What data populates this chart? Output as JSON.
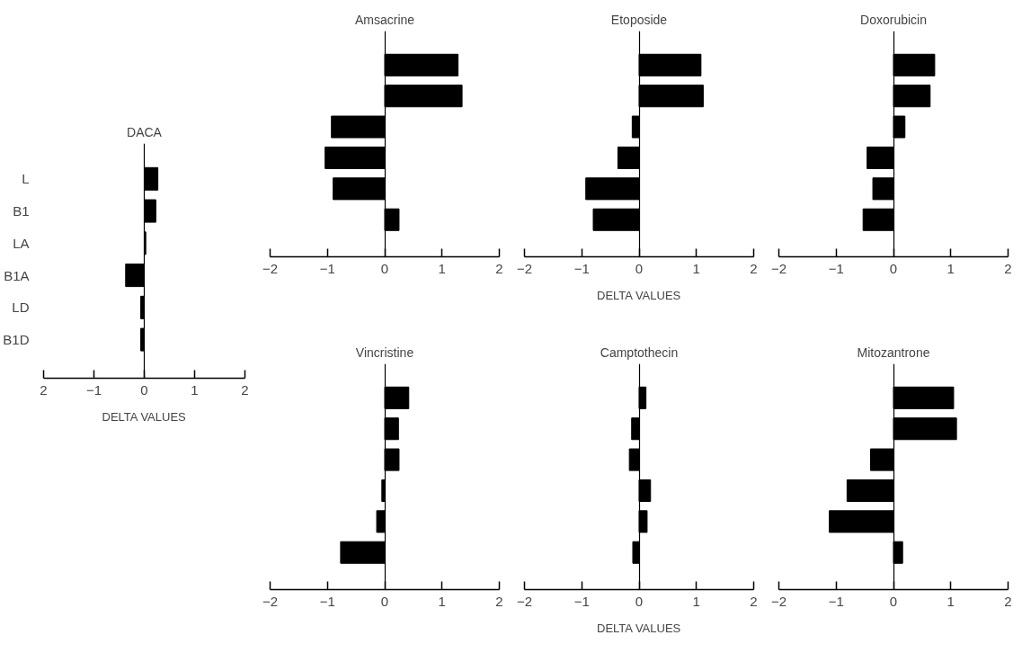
{
  "chart_data": [
    {
      "type": "bar",
      "orientation": "horizontal",
      "title": "Amsacrine",
      "categories": [
        null,
        null,
        null,
        null,
        null,
        null
      ],
      "values": [
        1.28,
        1.35,
        -0.93,
        -1.04,
        -0.9,
        0.25
      ],
      "color": "#000000",
      "xlim": [
        -2,
        2
      ],
      "xticks": [
        -2,
        -1,
        0,
        1,
        2
      ],
      "tick_labels": "x"
    },
    {
      "type": "bar",
      "orientation": "horizontal",
      "title": "Etoposide",
      "categories": [
        null,
        null,
        null,
        null,
        null,
        null
      ],
      "values": [
        1.08,
        1.12,
        -0.12,
        -0.37,
        -0.93,
        -0.8
      ],
      "color": "#000000",
      "xlim": [
        -2,
        2
      ],
      "xticks": [
        -2,
        -1,
        0,
        1,
        2
      ],
      "xlabel": "DELTA VALUES",
      "tick_labels": "x"
    },
    {
      "type": "bar",
      "orientation": "horizontal",
      "title": "Doxorubicin",
      "categories": [
        null,
        null,
        null,
        null,
        null,
        null
      ],
      "values": [
        0.72,
        0.64,
        0.2,
        -0.46,
        -0.36,
        -0.53
      ],
      "color": "#000000",
      "xlim": [
        -2,
        2
      ],
      "xticks": [
        -2,
        -1,
        0,
        1,
        2
      ],
      "tick_labels": "x"
    },
    {
      "type": "bar",
      "orientation": "horizontal",
      "title": "DACA",
      "categories": [
        "L",
        "B1",
        "LA",
        "B1A",
        "LD",
        "B1D"
      ],
      "values": [
        0.27,
        0.23,
        0.03,
        -0.37,
        -0.07,
        -0.07
      ],
      "color": "#000000",
      "xlim": [
        -2,
        2
      ],
      "xticks": [
        {
          "value": -2,
          "label": "2"
        },
        -1,
        0,
        1,
        2
      ],
      "xlabel": "DELTA VALUES"
    },
    {
      "type": "bar",
      "orientation": "horizontal",
      "title": "Vincristine",
      "categories": [
        null,
        null,
        null,
        null,
        null,
        null
      ],
      "values": [
        0.42,
        0.24,
        0.25,
        -0.05,
        -0.14,
        -0.77
      ],
      "color": "#000000",
      "xlim": [
        -2,
        2
      ],
      "xticks": [
        -2,
        -1,
        0,
        1,
        2
      ],
      "tick_labels": "x"
    },
    {
      "type": "bar",
      "orientation": "horizontal",
      "title": "Camptothecin",
      "categories": [
        null,
        null,
        null,
        null,
        null,
        null
      ],
      "values": [
        0.12,
        -0.13,
        -0.17,
        0.2,
        0.14,
        -0.11
      ],
      "color": "#000000",
      "xlim": [
        -2,
        2
      ],
      "xticks": [
        -2,
        -1,
        0,
        1,
        2
      ],
      "xlabel": "DELTA VALUES",
      "tick_labels": "x"
    },
    {
      "type": "bar",
      "orientation": "horizontal",
      "title": "Mitozantrone",
      "categories": [
        null,
        null,
        null,
        null,
        null,
        null
      ],
      "values": [
        1.05,
        1.1,
        -0.4,
        -0.81,
        -1.12,
        0.16
      ],
      "color": "#000000",
      "xlim": [
        -2,
        2
      ],
      "xticks": [
        -2,
        -1,
        0,
        1,
        2
      ],
      "tick_labels": "x"
    }
  ]
}
